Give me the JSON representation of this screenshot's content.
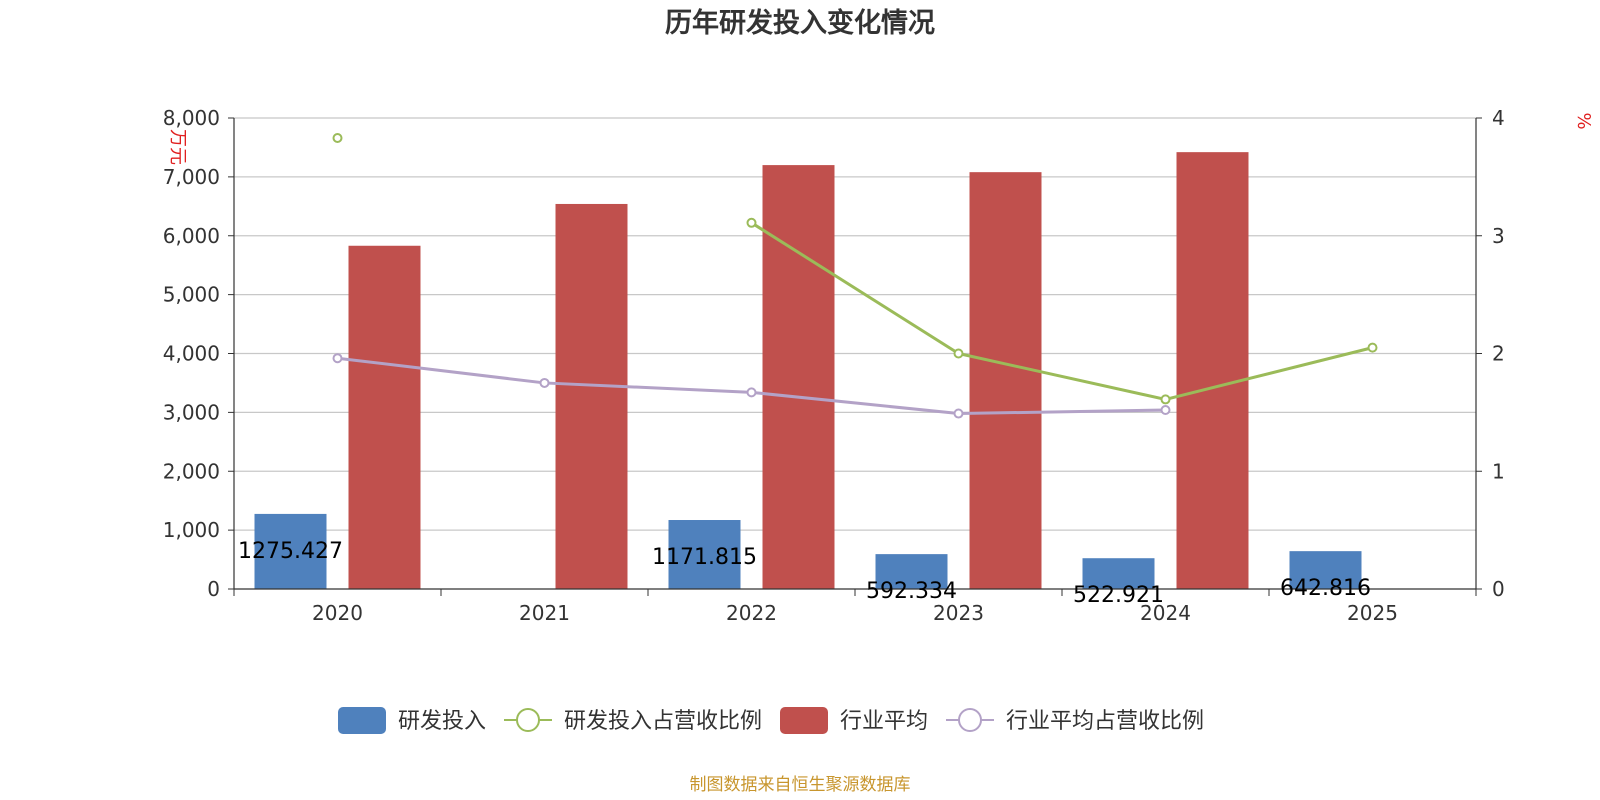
{
  "chart_data": {
    "type": "bar",
    "title": "历年研发投入变化情况",
    "categories": [
      "2020",
      "2021",
      "2022",
      "2023",
      "2024",
      "2025"
    ],
    "y_left": {
      "unit_label": "万元",
      "ylim": [
        0,
        8000
      ],
      "ticks": [
        "0",
        "1,000",
        "2,000",
        "3,000",
        "4,000",
        "5,000",
        "6,000",
        "7,000",
        "8,000"
      ]
    },
    "y_right": {
      "unit_label": "%",
      "ylim": [
        0,
        4
      ],
      "ticks": [
        "0",
        "1",
        "2",
        "3",
        "4"
      ]
    },
    "grid": true,
    "legend_position": "bottom",
    "series": [
      {
        "name": "研发投入",
        "kind": "bar",
        "axis": "left",
        "color": "#4f81bd",
        "values": [
          1275.427,
          null,
          1171.815,
          592.334,
          522.921,
          642.816
        ],
        "labels": [
          "1275.427",
          "",
          "1171.815",
          "592.334",
          "522.921",
          "642.816"
        ]
      },
      {
        "name": "研发投入占营收比例",
        "kind": "line",
        "axis": "right",
        "color": "#9bbb59",
        "values": [
          3.83,
          null,
          3.11,
          2.0,
          1.61,
          2.05
        ]
      },
      {
        "name": "行业平均",
        "kind": "bar",
        "axis": "left",
        "color": "#c0504d",
        "values": [
          5830,
          6540,
          7200,
          7080,
          7420,
          null
        ]
      },
      {
        "name": "行业平均占营收比例",
        "kind": "line",
        "axis": "right",
        "color": "#b3a2c7",
        "values": [
          1.96,
          1.75,
          1.67,
          1.49,
          1.52,
          null
        ]
      }
    ]
  },
  "footer": {
    "source": "制图数据来自恒生聚源数据库"
  }
}
